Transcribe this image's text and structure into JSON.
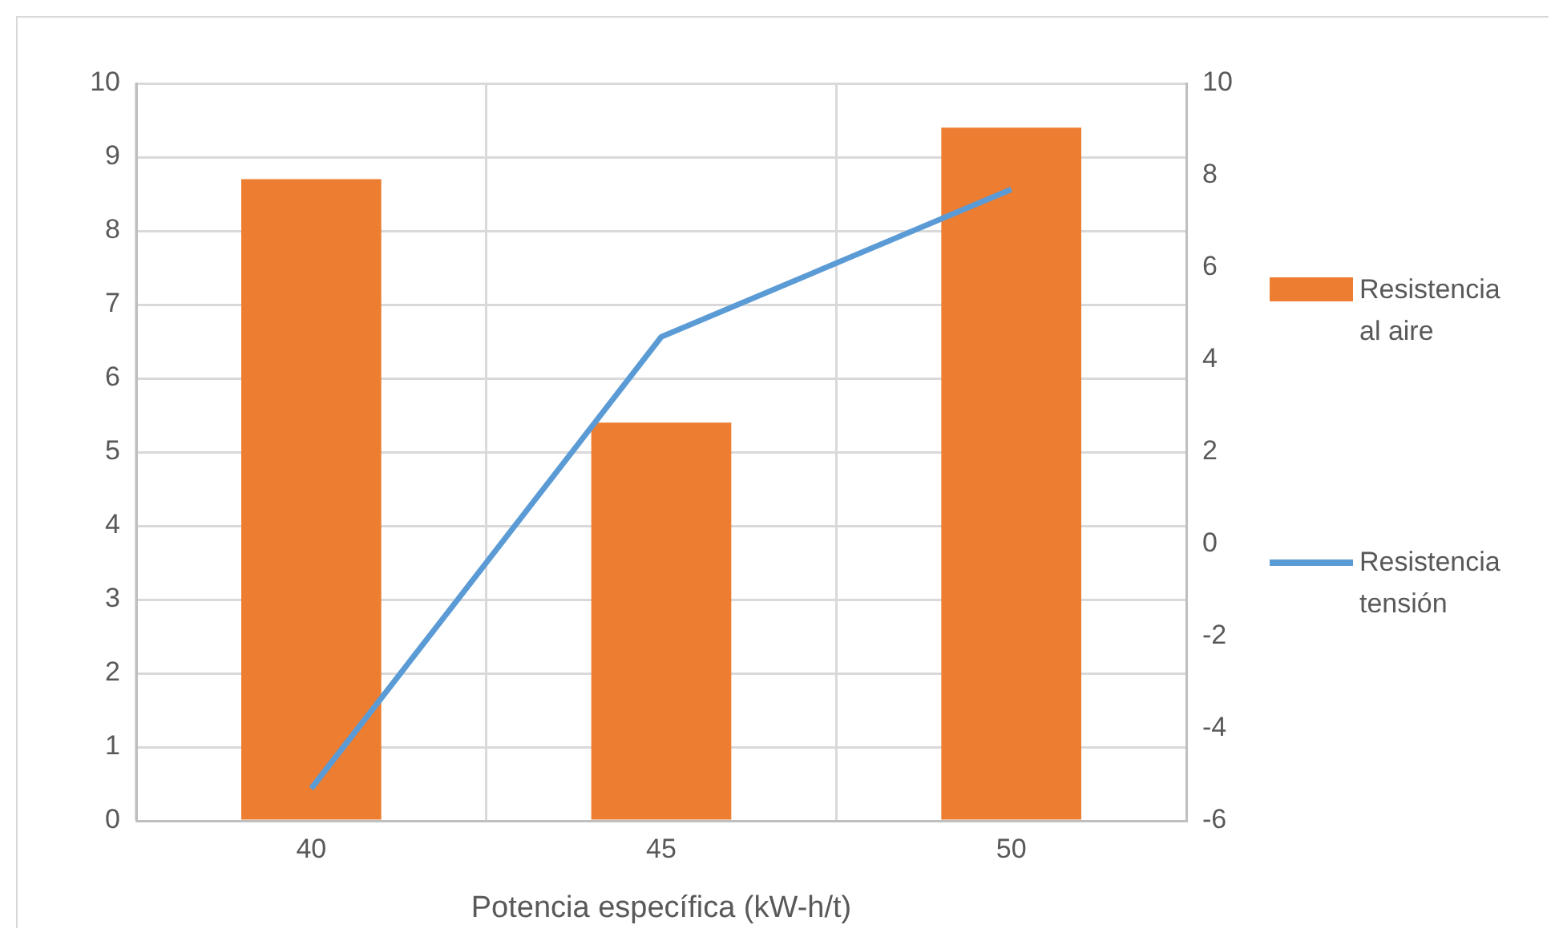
{
  "chart_data": {
    "type": "bar",
    "xlabel": "Potencia específica (kW-h/t)",
    "categories": [
      "40",
      "45",
      "50"
    ],
    "series": [
      {
        "name": "Resistencia al aire",
        "color": "#ed7d31",
        "values": [
          8.7,
          5.4,
          9.4
        ]
      },
      {
        "name": "Resistencia tensión",
        "type": "line",
        "axis": "y2",
        "color": "#5b9bd5",
        "values": [
          -5.3,
          4.5,
          7.7
        ]
      }
    ],
    "ylim": [
      0,
      10
    ],
    "yticks": [
      0,
      1,
      2,
      3,
      4,
      5,
      6,
      7,
      8,
      9,
      10
    ],
    "y2lim": [
      -6,
      10
    ],
    "y2ticks": [
      -6,
      -4,
      -2,
      0,
      2,
      4,
      6,
      8,
      10
    ],
    "grid": true,
    "legend": "right",
    "marker": "none",
    "line_style": "solid"
  }
}
